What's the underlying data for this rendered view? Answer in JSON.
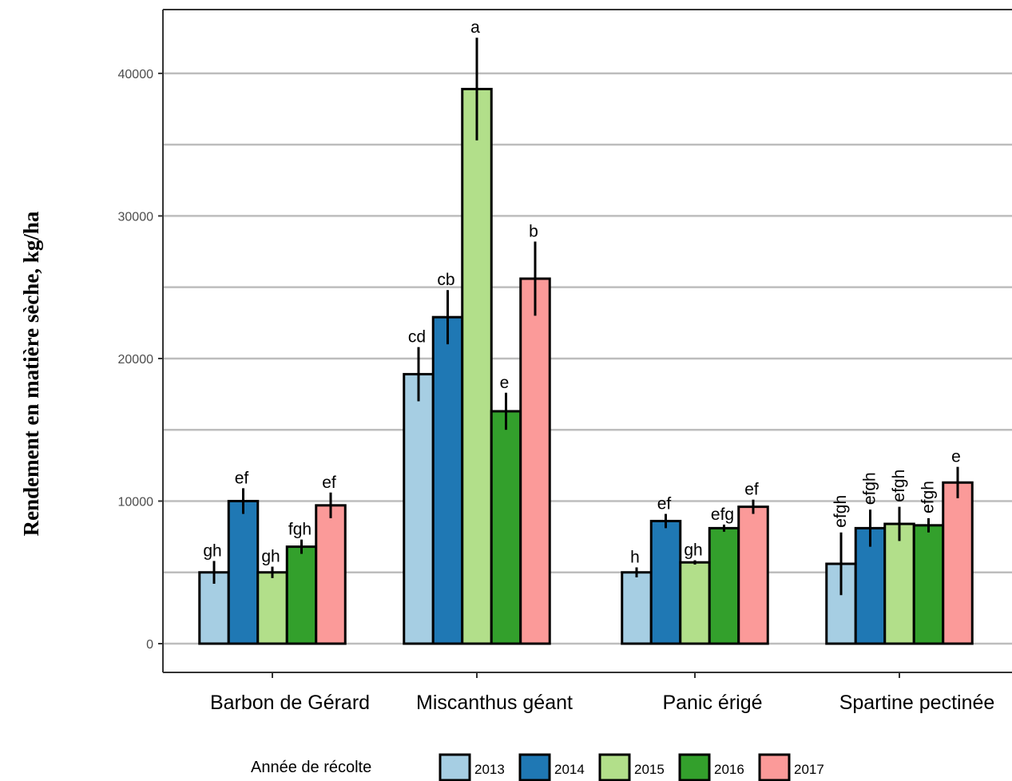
{
  "chart_data": {
    "type": "bar",
    "ylabel": "Rendement en matière sèche, kg/ha",
    "xlabel": "",
    "ylim": [
      0,
      44000
    ],
    "yticks": [
      0,
      10000,
      20000,
      30000,
      40000
    ],
    "grid": true,
    "legend_position": "bottom",
    "legend_title": "Année de récolte",
    "categories": [
      "Barbon de Gérard",
      "Miscanthus géant",
      "Panic érigé",
      "Spartine pectinée"
    ],
    "series": [
      {
        "name": "2013",
        "color": "#a6cee3",
        "values": [
          5000,
          18900,
          5000,
          5600
        ],
        "errors": [
          800,
          1900,
          350,
          2200
        ],
        "letters": [
          "gh",
          "cd",
          "h",
          "efgh"
        ]
      },
      {
        "name": "2014",
        "color": "#1f78b4",
        "values": [
          10000,
          22900,
          8600,
          8100
        ],
        "errors": [
          900,
          1900,
          500,
          1300
        ],
        "letters": [
          "ef",
          "cb",
          "ef",
          "efgh"
        ]
      },
      {
        "name": "2015",
        "color": "#b2df8a",
        "values": [
          5000,
          38900,
          5700,
          8400
        ],
        "errors": [
          400,
          3600,
          150,
          1200
        ],
        "letters": [
          "gh",
          "a",
          "gh",
          "efgh"
        ]
      },
      {
        "name": "2016",
        "color": "#33a02c",
        "values": [
          6800,
          16300,
          8100,
          8300
        ],
        "errors": [
          500,
          1300,
          250,
          500
        ],
        "letters": [
          "fgh",
          "e",
          "efg",
          "efgh"
        ]
      },
      {
        "name": "2017",
        "color": "#fb9a99",
        "values": [
          9700,
          25600,
          9600,
          11300
        ],
        "errors": [
          900,
          2600,
          500,
          1100
        ],
        "letters": [
          "ef",
          "b",
          "ef",
          "e"
        ]
      }
    ]
  }
}
